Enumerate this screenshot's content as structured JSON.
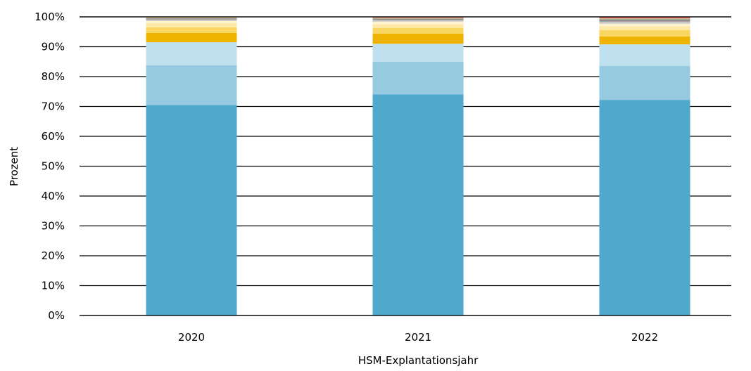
{
  "chart_data": {
    "type": "bar",
    "stacked": true,
    "title": "",
    "xlabel": "HSM-Explantationsjahr",
    "ylabel": "Prozent",
    "ylim": [
      0,
      100
    ],
    "y_tick_values": [
      0,
      10,
      20,
      30,
      40,
      50,
      60,
      70,
      80,
      90,
      100
    ],
    "y_tick_labels": [
      "0%",
      "10%",
      "20%",
      "30%",
      "40%",
      "50%",
      "60%",
      "70%",
      "80%",
      "90%",
      "100%"
    ],
    "grid": "horizontal",
    "legend": "none",
    "categories": [
      "2020",
      "2021",
      "2022"
    ],
    "series": [
      {
        "color": "#4fa9cc",
        "values": [
          70.5,
          74.0,
          72.2
        ]
      },
      {
        "color": "#95cae0",
        "values": [
          13.3,
          11.0,
          11.4
        ]
      },
      {
        "color": "#bfe0ee",
        "values": [
          7.7,
          6.0,
          7.2
        ]
      },
      {
        "color": "#edb300",
        "values": [
          3.1,
          3.4,
          2.6
        ]
      },
      {
        "color": "#f8d660",
        "values": [
          1.9,
          1.9,
          2.2
        ]
      },
      {
        "color": "#fde8a6",
        "values": [
          1.4,
          1.2,
          1.3
        ]
      },
      {
        "color": "#fff3d0",
        "values": [
          0.7,
          0.9,
          0.8
        ]
      },
      {
        "color": "#c9c9c9",
        "values": [
          0.5,
          0.5,
          0.7
        ]
      },
      {
        "color": "#8f8f8f",
        "values": [
          0.4,
          0.5,
          0.8
        ]
      },
      {
        "color": "#d0c08a",
        "values": [
          0.5,
          0.3,
          0.3
        ]
      },
      {
        "color": "#e06060",
        "values": [
          0.0,
          0.3,
          0.5
        ]
      }
    ]
  }
}
